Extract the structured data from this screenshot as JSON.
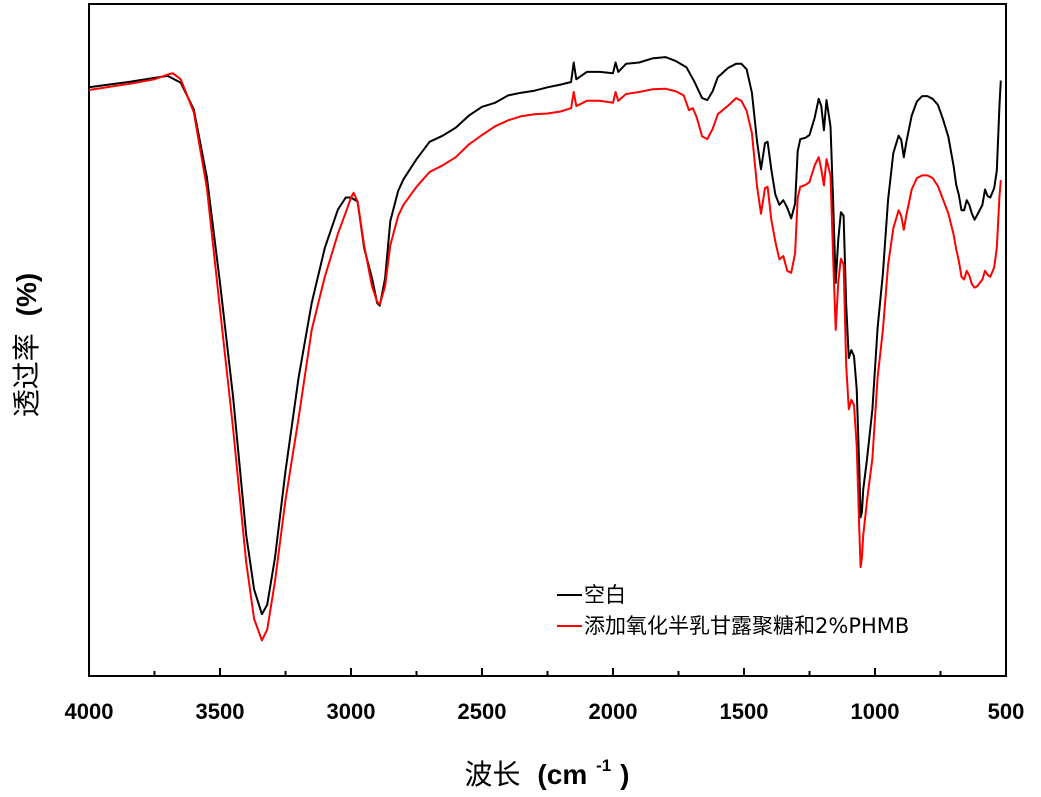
{
  "chart_data": {
    "type": "line",
    "title": "",
    "xlabel_main": "波长",
    "xlabel_unit_base": "(cm",
    "xlabel_unit_sup": "-1",
    "xlabel_unit_close": ")",
    "ylabel_main": "透过率",
    "ylabel_unit": "(%)",
    "xlim": [
      4000,
      500
    ],
    "ylim": [
      0,
      100
    ],
    "x_reversed": true,
    "y_ticks_shown": false,
    "grid": false,
    "legend_position": "bottom-right",
    "x_ticks": [
      4000,
      3500,
      3000,
      2500,
      2000,
      1500,
      1000,
      500
    ],
    "x_tick_labels": [
      "4000",
      "3500",
      "3000",
      "2500",
      "2000",
      "1500",
      "1000",
      "500"
    ],
    "series": [
      {
        "name": "空白",
        "color": "#000000",
        "points": [
          [
            4000,
            87.6
          ],
          [
            3850,
            88.4
          ],
          [
            3750,
            89.0
          ],
          [
            3700,
            89.3
          ],
          [
            3650,
            88.3
          ],
          [
            3600,
            84.3
          ],
          [
            3550,
            74.2
          ],
          [
            3500,
            58.5
          ],
          [
            3450,
            41.5
          ],
          [
            3400,
            21.0
          ],
          [
            3370,
            12.9
          ],
          [
            3340,
            9.2
          ],
          [
            3320,
            10.6
          ],
          [
            3290,
            17.6
          ],
          [
            3250,
            30.5
          ],
          [
            3200,
            44.4
          ],
          [
            3150,
            55.5
          ],
          [
            3100,
            63.7
          ],
          [
            3050,
            69.4
          ],
          [
            3020,
            71.2
          ],
          [
            3000,
            71.2
          ],
          [
            2975,
            70.6
          ],
          [
            2950,
            63.7
          ],
          [
            2920,
            59.2
          ],
          [
            2900,
            55.5
          ],
          [
            2890,
            55.1
          ],
          [
            2870,
            59.2
          ],
          [
            2850,
            67.7
          ],
          [
            2820,
            72.2
          ],
          [
            2800,
            73.9
          ],
          [
            2750,
            76.9
          ],
          [
            2700,
            79.5
          ],
          [
            2650,
            80.4
          ],
          [
            2600,
            81.6
          ],
          [
            2550,
            83.4
          ],
          [
            2500,
            84.7
          ],
          [
            2450,
            85.3
          ],
          [
            2400,
            86.4
          ],
          [
            2350,
            86.8
          ],
          [
            2300,
            87.1
          ],
          [
            2250,
            87.6
          ],
          [
            2200,
            88.0
          ],
          [
            2160,
            88.4
          ],
          [
            2150,
            91.3
          ],
          [
            2140,
            88.8
          ],
          [
            2100,
            89.9
          ],
          [
            2050,
            89.9
          ],
          [
            2000,
            89.7
          ],
          [
            1990,
            91.3
          ],
          [
            1980,
            89.9
          ],
          [
            1950,
            91.1
          ],
          [
            1900,
            91.3
          ],
          [
            1850,
            91.9
          ],
          [
            1800,
            92.1
          ],
          [
            1760,
            91.5
          ],
          [
            1720,
            90.6
          ],
          [
            1690,
            88.5
          ],
          [
            1660,
            86.0
          ],
          [
            1640,
            85.7
          ],
          [
            1620,
            87.0
          ],
          [
            1600,
            89.1
          ],
          [
            1560,
            90.5
          ],
          [
            1530,
            91.1
          ],
          [
            1510,
            91.1
          ],
          [
            1490,
            90.3
          ],
          [
            1470,
            86.8
          ],
          [
            1450,
            79.5
          ],
          [
            1435,
            75.4
          ],
          [
            1420,
            79.3
          ],
          [
            1410,
            79.5
          ],
          [
            1395,
            75.2
          ],
          [
            1380,
            71.6
          ],
          [
            1365,
            70.1
          ],
          [
            1350,
            70.8
          ],
          [
            1335,
            69.7
          ],
          [
            1320,
            68.1
          ],
          [
            1305,
            70.3
          ],
          [
            1295,
            78.1
          ],
          [
            1285,
            79.9
          ],
          [
            1265,
            80.1
          ],
          [
            1250,
            80.5
          ],
          [
            1230,
            83.1
          ],
          [
            1215,
            85.9
          ],
          [
            1205,
            84.8
          ],
          [
            1195,
            81.2
          ],
          [
            1185,
            85.7
          ],
          [
            1170,
            81.8
          ],
          [
            1160,
            70.8
          ],
          [
            1150,
            58.5
          ],
          [
            1140,
            65.0
          ],
          [
            1130,
            69.0
          ],
          [
            1120,
            68.5
          ],
          [
            1110,
            55.2
          ],
          [
            1100,
            47.3
          ],
          [
            1090,
            48.5
          ],
          [
            1080,
            47.6
          ],
          [
            1070,
            42.7
          ],
          [
            1060,
            30.8
          ],
          [
            1055,
            23.6
          ],
          [
            1050,
            24.4
          ],
          [
            1045,
            27.7
          ],
          [
            1030,
            32.4
          ],
          [
            1010,
            39.7
          ],
          [
            990,
            51.8
          ],
          [
            970,
            59.9
          ],
          [
            950,
            70.9
          ],
          [
            930,
            77.8
          ],
          [
            910,
            80.4
          ],
          [
            900,
            79.8
          ],
          [
            890,
            77.2
          ],
          [
            880,
            79.5
          ],
          [
            860,
            83.4
          ],
          [
            840,
            85.5
          ],
          [
            820,
            86.3
          ],
          [
            800,
            86.3
          ],
          [
            780,
            85.9
          ],
          [
            760,
            85.0
          ],
          [
            740,
            82.8
          ],
          [
            720,
            80.2
          ],
          [
            700,
            75.9
          ],
          [
            690,
            73.1
          ],
          [
            680,
            71.6
          ],
          [
            670,
            69.3
          ],
          [
            660,
            69.3
          ],
          [
            650,
            70.8
          ],
          [
            640,
            70.1
          ],
          [
            630,
            68.8
          ],
          [
            620,
            67.9
          ],
          [
            610,
            68.6
          ],
          [
            590,
            70.1
          ],
          [
            580,
            72.4
          ],
          [
            570,
            71.4
          ],
          [
            560,
            71.2
          ],
          [
            545,
            72.6
          ],
          [
            535,
            75.2
          ],
          [
            525,
            85.0
          ],
          [
            520,
            88.6
          ]
        ]
      },
      {
        "name": "添加氧化半乳甘露聚糖和2%PHMB",
        "color": "#ff0000",
        "points": [
          [
            4000,
            87.2
          ],
          [
            3850,
            88.1
          ],
          [
            3750,
            88.8
          ],
          [
            3700,
            89.5
          ],
          [
            3680,
            89.7
          ],
          [
            3650,
            88.8
          ],
          [
            3600,
            83.9
          ],
          [
            3550,
            72.6
          ],
          [
            3500,
            54.6
          ],
          [
            3450,
            36.8
          ],
          [
            3400,
            16.9
          ],
          [
            3370,
            8.5
          ],
          [
            3340,
            5.3
          ],
          [
            3320,
            6.9
          ],
          [
            3290,
            14.1
          ],
          [
            3250,
            26.2
          ],
          [
            3200,
            38.4
          ],
          [
            3150,
            51.5
          ],
          [
            3100,
            59.4
          ],
          [
            3050,
            65.8
          ],
          [
            3020,
            69.0
          ],
          [
            3000,
            71.2
          ],
          [
            2990,
            71.9
          ],
          [
            2975,
            70.6
          ],
          [
            2950,
            64.1
          ],
          [
            2920,
            58.0
          ],
          [
            2900,
            55.7
          ],
          [
            2890,
            55.3
          ],
          [
            2870,
            58.0
          ],
          [
            2850,
            64.1
          ],
          [
            2820,
            68.5
          ],
          [
            2800,
            70.1
          ],
          [
            2750,
            72.8
          ],
          [
            2700,
            75.0
          ],
          [
            2650,
            76.0
          ],
          [
            2600,
            77.2
          ],
          [
            2550,
            79.1
          ],
          [
            2500,
            80.5
          ],
          [
            2450,
            81.8
          ],
          [
            2400,
            82.7
          ],
          [
            2350,
            83.3
          ],
          [
            2300,
            83.6
          ],
          [
            2250,
            83.7
          ],
          [
            2200,
            84.0
          ],
          [
            2160,
            84.5
          ],
          [
            2150,
            86.9
          ],
          [
            2140,
            84.8
          ],
          [
            2100,
            85.6
          ],
          [
            2050,
            85.6
          ],
          [
            2000,
            85.3
          ],
          [
            1990,
            86.9
          ],
          [
            1980,
            85.6
          ],
          [
            1950,
            86.6
          ],
          [
            1900,
            86.9
          ],
          [
            1850,
            87.3
          ],
          [
            1800,
            87.4
          ],
          [
            1760,
            87.0
          ],
          [
            1730,
            86.4
          ],
          [
            1710,
            84.2
          ],
          [
            1695,
            84.5
          ],
          [
            1680,
            83.1
          ],
          [
            1660,
            80.3
          ],
          [
            1640,
            79.9
          ],
          [
            1620,
            81.4
          ],
          [
            1600,
            83.6
          ],
          [
            1560,
            84.9
          ],
          [
            1530,
            86.0
          ],
          [
            1510,
            85.6
          ],
          [
            1490,
            84.1
          ],
          [
            1470,
            80.8
          ],
          [
            1450,
            72.8
          ],
          [
            1435,
            68.8
          ],
          [
            1420,
            72.6
          ],
          [
            1410,
            72.8
          ],
          [
            1395,
            67.7
          ],
          [
            1380,
            64.6
          ],
          [
            1365,
            62.0
          ],
          [
            1350,
            62.5
          ],
          [
            1335,
            60.3
          ],
          [
            1320,
            60.0
          ],
          [
            1305,
            62.9
          ],
          [
            1295,
            71.2
          ],
          [
            1285,
            72.8
          ],
          [
            1265,
            73.1
          ],
          [
            1250,
            73.5
          ],
          [
            1230,
            76.0
          ],
          [
            1215,
            77.2
          ],
          [
            1205,
            75.4
          ],
          [
            1195,
            73.0
          ],
          [
            1185,
            76.9
          ],
          [
            1170,
            74.5
          ],
          [
            1160,
            62.5
          ],
          [
            1150,
            51.5
          ],
          [
            1140,
            58.7
          ],
          [
            1130,
            62.1
          ],
          [
            1120,
            61.2
          ],
          [
            1110,
            46.2
          ],
          [
            1100,
            39.7
          ],
          [
            1090,
            41.1
          ],
          [
            1080,
            40.3
          ],
          [
            1070,
            34.3
          ],
          [
            1060,
            21.7
          ],
          [
            1055,
            16.2
          ],
          [
            1050,
            17.6
          ],
          [
            1045,
            20.9
          ],
          [
            1030,
            26.2
          ],
          [
            1010,
            32.4
          ],
          [
            990,
            44.4
          ],
          [
            970,
            51.5
          ],
          [
            950,
            61.2
          ],
          [
            930,
            66.6
          ],
          [
            910,
            69.3
          ],
          [
            900,
            68.5
          ],
          [
            890,
            66.4
          ],
          [
            880,
            68.6
          ],
          [
            860,
            72.4
          ],
          [
            840,
            74.1
          ],
          [
            820,
            74.5
          ],
          [
            800,
            74.5
          ],
          [
            780,
            74.1
          ],
          [
            760,
            72.9
          ],
          [
            740,
            70.9
          ],
          [
            720,
            68.8
          ],
          [
            700,
            65.7
          ],
          [
            690,
            63.5
          ],
          [
            680,
            61.8
          ],
          [
            670,
            59.4
          ],
          [
            660,
            59.0
          ],
          [
            650,
            60.3
          ],
          [
            640,
            59.6
          ],
          [
            630,
            58.3
          ],
          [
            620,
            57.8
          ],
          [
            610,
            58.0
          ],
          [
            590,
            59.0
          ],
          [
            580,
            60.3
          ],
          [
            570,
            59.7
          ],
          [
            560,
            59.4
          ],
          [
            545,
            60.8
          ],
          [
            535,
            63.7
          ],
          [
            525,
            71.4
          ],
          [
            520,
            73.8
          ]
        ]
      }
    ]
  }
}
